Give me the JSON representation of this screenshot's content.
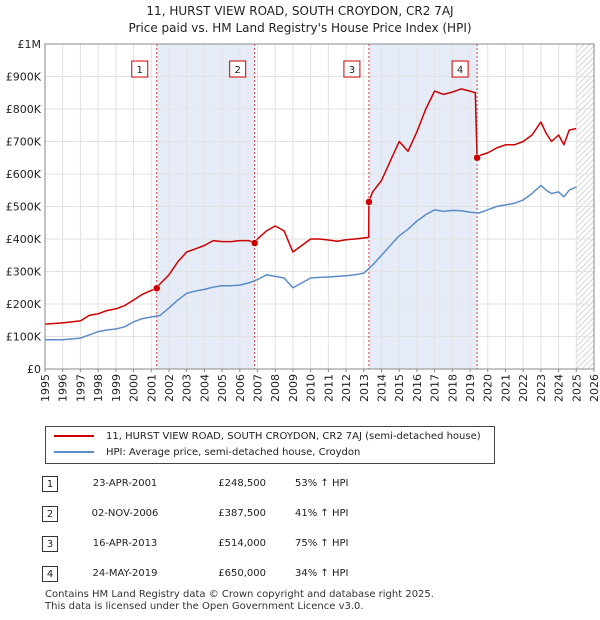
{
  "title_line1": "11, HURST VIEW ROAD, SOUTH CROYDON, CR2 7AJ",
  "title_line2": "Price paid vs. HM Land Registry's House Price Index (HPI)",
  "colors": {
    "property": "#cc0000",
    "hpi": "#5b8cc8",
    "shade": "#dde6f4"
  },
  "legend": {
    "property": "11, HURST VIEW ROAD, SOUTH CROYDON, CR2 7AJ (semi-detached house)",
    "hpi": "HPI: Average price, semi-detached house, Croydon"
  },
  "transactions": [
    {
      "num": "1",
      "date": "23-APR-2001",
      "price": "£248,500",
      "hpi": "53% ↑ HPI"
    },
    {
      "num": "2",
      "date": "02-NOV-2006",
      "price": "£387,500",
      "hpi": "41% ↑ HPI"
    },
    {
      "num": "3",
      "date": "16-APR-2013",
      "price": "£514,000",
      "hpi": "75% ↑ HPI"
    },
    {
      "num": "4",
      "date": "24-MAY-2019",
      "price": "£650,000",
      "hpi": "34% ↑ HPI"
    }
  ],
  "footer": {
    "line1": "Contains HM Land Registry data © Crown copyright and database right 2025.",
    "line2": "This data is licensed under the Open Government Licence v3.0."
  },
  "chart_data": {
    "type": "line",
    "title": "11, HURST VIEW ROAD, SOUTH CROYDON, CR2 7AJ — Price paid vs. HM Land Registry's House Price Index (HPI)",
    "xlabel": "",
    "ylabel": "",
    "xlim": [
      1995,
      2026
    ],
    "ylim": [
      0,
      1000000
    ],
    "x_ticks": [
      "1995",
      "1996",
      "1997",
      "1998",
      "1999",
      "2000",
      "2001",
      "2002",
      "2003",
      "2004",
      "2005",
      "2006",
      "2007",
      "2008",
      "2009",
      "2010",
      "2011",
      "2012",
      "2013",
      "2014",
      "2015",
      "2016",
      "2017",
      "2018",
      "2019",
      "2020",
      "2021",
      "2022",
      "2023",
      "2024",
      "2025",
      "2026"
    ],
    "y_ticks": [
      {
        "value": 0,
        "label": "£0"
      },
      {
        "value": 100000,
        "label": "£100K"
      },
      {
        "value": 200000,
        "label": "£200K"
      },
      {
        "value": 300000,
        "label": "£300K"
      },
      {
        "value": 400000,
        "label": "£400K"
      },
      {
        "value": 500000,
        "label": "£500K"
      },
      {
        "value": 600000,
        "label": "£600K"
      },
      {
        "value": 700000,
        "label": "£700K"
      },
      {
        "value": 800000,
        "label": "£800K"
      },
      {
        "value": 900000,
        "label": "£900K"
      },
      {
        "value": 1000000,
        "label": "£1M"
      }
    ],
    "grid": true,
    "future_hatch_from": 2025.0,
    "shaded_periods": [
      [
        2001.31,
        2006.84
      ],
      [
        2013.29,
        2019.4
      ]
    ],
    "series": [
      {
        "name": "11, HURST VIEW ROAD, SOUTH CROYDON, CR2 7AJ (semi-detached house)",
        "x": [
          1995.0,
          1996.0,
          1997.0,
          1997.5,
          1998.0,
          1998.5,
          1999.0,
          1999.5,
          2000.0,
          2000.5,
          2001.0,
          2001.31,
          2001.5,
          2002.0,
          2002.5,
          2003.0,
          2003.5,
          2004.0,
          2004.5,
          2005.0,
          2005.5,
          2006.0,
          2006.5,
          2006.84,
          2007.0,
          2007.5,
          2008.0,
          2008.5,
          2009.0,
          2009.5,
          2010.0,
          2010.5,
          2011.0,
          2011.5,
          2012.0,
          2012.5,
          2013.0,
          2013.28,
          2013.29,
          2013.5,
          2014.0,
          2014.5,
          2015.0,
          2015.5,
          2016.0,
          2016.5,
          2017.0,
          2017.5,
          2018.0,
          2018.5,
          2019.0,
          2019.3,
          2019.4,
          2019.6,
          2020.0,
          2020.5,
          2021.0,
          2021.5,
          2022.0,
          2022.5,
          2023.0,
          2023.3,
          2023.6,
          2024.0,
          2024.3,
          2024.6,
          2025.0
        ],
        "values": [
          138000,
          142000,
          148000,
          165000,
          170000,
          180000,
          185000,
          195000,
          212000,
          230000,
          242000,
          248500,
          262000,
          290000,
          330000,
          360000,
          370000,
          380000,
          395000,
          392000,
          392000,
          395000,
          395000,
          387500,
          400000,
          425000,
          440000,
          425000,
          360000,
          380000,
          400000,
          400000,
          397000,
          393000,
          398000,
          400000,
          403000,
          405000,
          514000,
          545000,
          580000,
          640000,
          700000,
          670000,
          730000,
          800000,
          855000,
          845000,
          852000,
          862000,
          855000,
          850000,
          650000,
          658000,
          665000,
          680000,
          690000,
          690000,
          700000,
          720000,
          760000,
          725000,
          700000,
          720000,
          690000,
          735000,
          740000
        ],
        "color": "#cc0000"
      },
      {
        "name": "HPI: Average price, semi-detached house, Croydon",
        "x": [
          1995.0,
          1996.0,
          1997.0,
          1997.5,
          1998.0,
          1998.5,
          1999.0,
          1999.5,
          2000.0,
          2000.5,
          2001.0,
          2001.5,
          2002.0,
          2002.5,
          2003.0,
          2003.5,
          2004.0,
          2004.5,
          2005.0,
          2005.5,
          2006.0,
          2006.5,
          2007.0,
          2007.5,
          2008.0,
          2008.5,
          2009.0,
          2009.5,
          2010.0,
          2010.5,
          2011.0,
          2011.5,
          2012.0,
          2012.5,
          2013.0,
          2013.5,
          2014.0,
          2014.5,
          2015.0,
          2015.5,
          2016.0,
          2016.5,
          2017.0,
          2017.5,
          2018.0,
          2018.5,
          2019.0,
          2019.5,
          2020.0,
          2020.5,
          2021.0,
          2021.5,
          2022.0,
          2022.5,
          2023.0,
          2023.3,
          2023.6,
          2024.0,
          2024.3,
          2024.6,
          2025.0
        ],
        "values": [
          90000,
          90000,
          95000,
          105000,
          115000,
          120000,
          123000,
          130000,
          145000,
          155000,
          160000,
          165000,
          188000,
          212000,
          233000,
          240000,
          245000,
          252000,
          256000,
          256000,
          258000,
          265000,
          275000,
          290000,
          285000,
          280000,
          250000,
          265000,
          280000,
          282000,
          283000,
          285000,
          287000,
          290000,
          295000,
          320000,
          350000,
          380000,
          410000,
          430000,
          455000,
          475000,
          490000,
          485000,
          488000,
          487000,
          482000,
          480000,
          490000,
          500000,
          505000,
          510000,
          520000,
          540000,
          565000,
          550000,
          540000,
          545000,
          530000,
          550000,
          560000
        ],
        "color": "#5b8cc8"
      }
    ],
    "sale_points": [
      {
        "label": "1",
        "x": 2001.31,
        "value": 248500
      },
      {
        "label": "2",
        "x": 2006.84,
        "value": 387500
      },
      {
        "label": "3",
        "x": 2013.29,
        "value": 514000
      },
      {
        "label": "4",
        "x": 2019.4,
        "value": 650000
      }
    ],
    "annotation_boxes_value": 920000
  }
}
